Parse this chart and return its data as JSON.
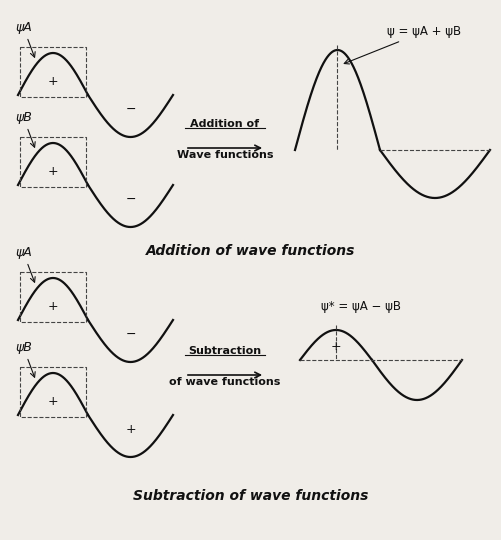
{
  "bg_color": "#f0ede8",
  "line_color": "#111111",
  "dashed_color": "#444444",
  "title_top": "Addition of wave functions",
  "title_bottom": "Subtraction of wave functions",
  "arrow_label_top": "Addition of\nWave functions",
  "arrow_label_bottom": "Subtraction\nof wave functions",
  "label_psiA": "ψA",
  "label_psiB": "ψB",
  "label_plus": "+",
  "label_minus": "−",
  "label_sum": "ψ = ψA + ψB",
  "label_diff": "ψ* = ψA − ψB"
}
